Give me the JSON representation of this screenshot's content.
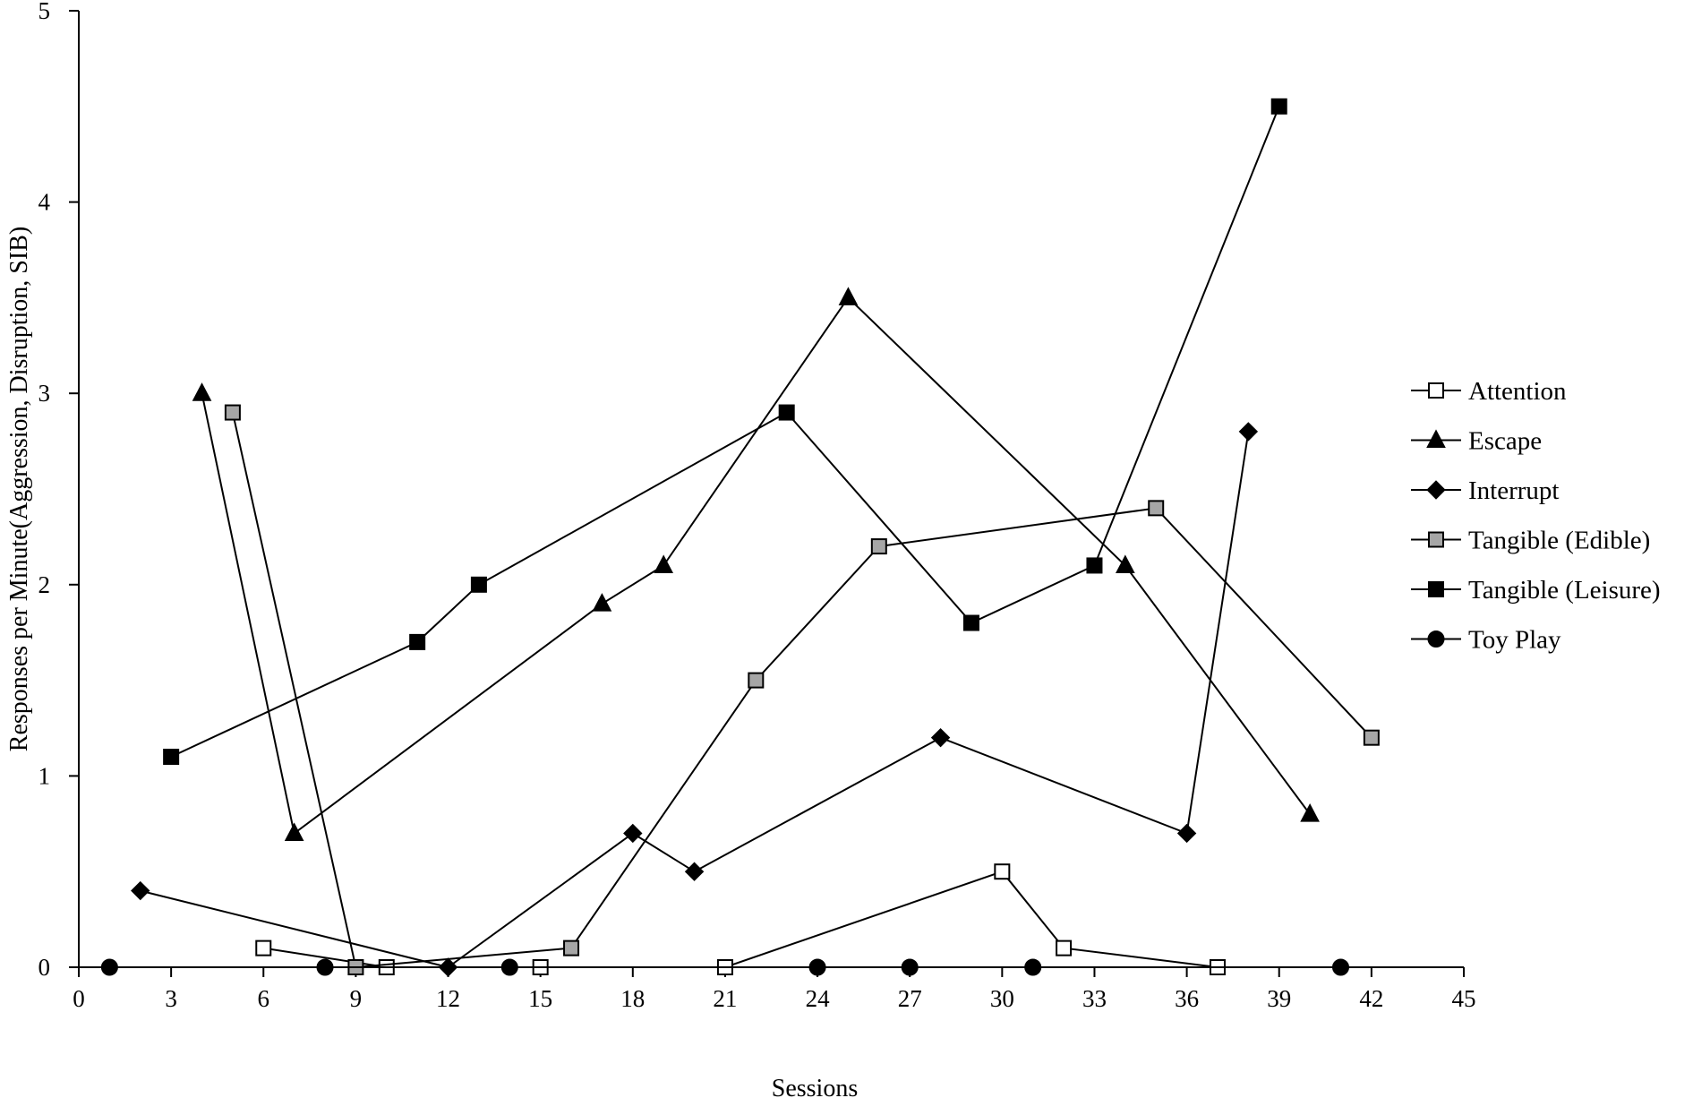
{
  "chart_data": {
    "type": "line",
    "title": "",
    "xlabel": "Sessions",
    "ylabel": "Responses per Minute(Aggression, Disruption, SIB)",
    "xlim": [
      0,
      45
    ],
    "ylim": [
      0,
      5
    ],
    "xticks": [
      0,
      3,
      6,
      9,
      12,
      15,
      18,
      21,
      24,
      27,
      30,
      33,
      36,
      39,
      42,
      45
    ],
    "yticks": [
      0,
      1,
      2,
      3,
      4,
      5
    ],
    "grid": false,
    "legend_position": "right",
    "series": [
      {
        "name": "Attention",
        "marker": "square-open",
        "points": [
          [
            6,
            0.1
          ],
          [
            10,
            0
          ],
          [
            15,
            0
          ],
          [
            21,
            0
          ],
          [
            30,
            0.5
          ],
          [
            32,
            0.1
          ],
          [
            37,
            0
          ]
        ]
      },
      {
        "name": "Escape",
        "marker": "triangle",
        "points": [
          [
            4,
            3.0
          ],
          [
            7,
            0.7
          ],
          [
            17,
            1.9
          ],
          [
            19,
            2.1
          ],
          [
            25,
            3.5
          ],
          [
            34,
            2.1
          ],
          [
            40,
            0.8
          ]
        ]
      },
      {
        "name": "Interrupt",
        "marker": "diamond",
        "points": [
          [
            2,
            0.4
          ],
          [
            12,
            0
          ],
          [
            18,
            0.7
          ],
          [
            20,
            0.5
          ],
          [
            28,
            1.2
          ],
          [
            36,
            0.7
          ],
          [
            38,
            2.8
          ]
        ]
      },
      {
        "name": "Tangible (Edible)",
        "marker": "square-gray",
        "points": [
          [
            5,
            2.9
          ],
          [
            9,
            0
          ],
          [
            16,
            0.1
          ],
          [
            22,
            1.5
          ],
          [
            26,
            2.2
          ],
          [
            35,
            2.4
          ],
          [
            42,
            1.2
          ]
        ]
      },
      {
        "name": "Tangible (Leisure)",
        "marker": "square-black",
        "points": [
          [
            3,
            1.1
          ],
          [
            11,
            1.7
          ],
          [
            13,
            2.0
          ],
          [
            23,
            2.9
          ],
          [
            29,
            1.8
          ],
          [
            33,
            2.1
          ],
          [
            39,
            4.5
          ]
        ]
      },
      {
        "name": "Toy Play",
        "marker": "circle",
        "points": [
          [
            1,
            0
          ],
          [
            8,
            0
          ],
          [
            14,
            0
          ],
          [
            24,
            0
          ],
          [
            27,
            0
          ],
          [
            31,
            0
          ],
          [
            41,
            0
          ]
        ]
      }
    ]
  }
}
